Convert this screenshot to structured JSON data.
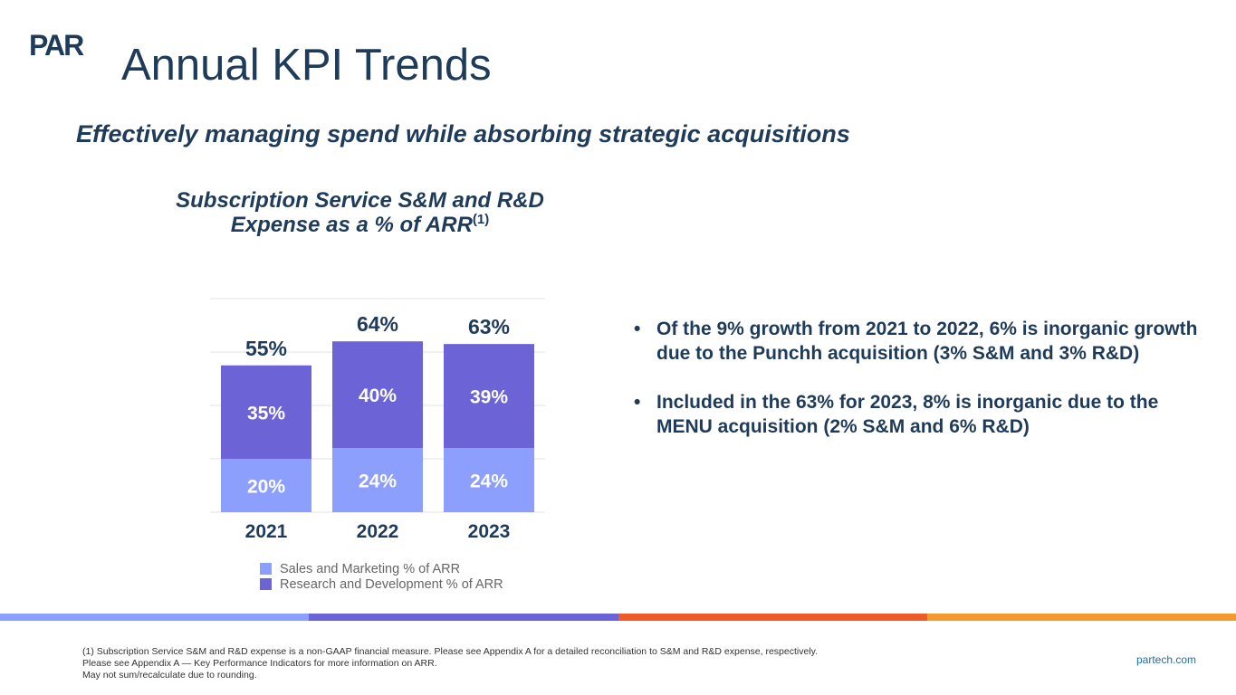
{
  "brand": {
    "logo_text": "PAR",
    "website": "partech.com"
  },
  "header": {
    "title": "Annual KPI Trends",
    "subtitle": "Effectively managing spend while absorbing strategic acquisitions"
  },
  "chart_header": {
    "line1": "Subscription Service S&M and R&D",
    "line2": "Expense as a % of ARR",
    "superscript": "(1)"
  },
  "chart_data": {
    "type": "bar",
    "stacked": true,
    "title": "Subscription Service S&M and R&D Expense as a % of ARR(1)",
    "categories": [
      "2021",
      "2022",
      "2023"
    ],
    "series": [
      {
        "name": "Sales and Marketing % of ARR",
        "values": [
          20,
          24,
          24
        ],
        "labels": [
          "20%",
          "24%",
          "24%"
        ],
        "color": "#8c9ffc"
      },
      {
        "name": "Research and Development % of ARR",
        "values": [
          35,
          40,
          39
        ],
        "labels": [
          "35%",
          "40%",
          "39%"
        ],
        "color": "#6b63d6"
      }
    ],
    "totals": [
      55,
      64,
      63
    ],
    "total_labels": [
      "55%",
      "64%",
      "63%"
    ],
    "ylim": [
      0,
      80
    ],
    "grid": true,
    "legend": "bottom"
  },
  "bullets": [
    "Of the 9% growth from 2021 to 2022, 6% is inorganic growth due to the Punchh acquisition (3% S&M and 3% R&D)",
    "Included in the 63% for 2023, 8% is inorganic due to the MENU acquisition (2% S&M and 6% R&D)"
  ],
  "footnotes": [
    "(1) Subscription Service S&M and R&D expense is a non-GAAP financial measure. Please see Appendix A for a detailed reconciliation to S&M and R&D expense, respectively.",
    "Please see Appendix A — Key Performance Indicators for more information on ARR.",
    "May not sum/recalculate due to rounding."
  ],
  "colors": {
    "title": "#1f3b5a",
    "sm": "#8c9ffc",
    "rd": "#6b63d6",
    "bar_stripe": [
      "#8c9ffc",
      "#6b63d6",
      "#f05a28",
      "#f29a2e"
    ]
  }
}
